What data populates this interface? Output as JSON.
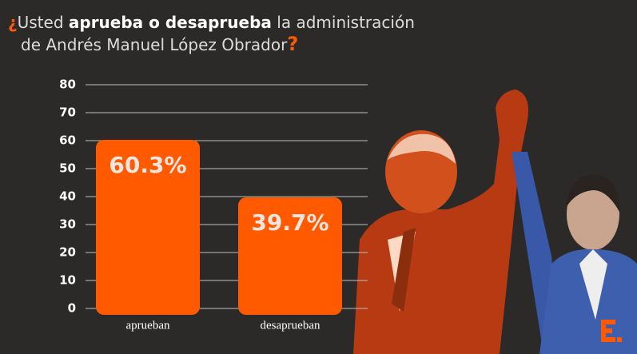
{
  "chart_data": {
    "type": "bar",
    "title": [
      "¿",
      "Usted ",
      "aprueba o desaprueba",
      " la administración",
      "de Andrés Manuel López Obrador",
      "?"
    ],
    "categories": [
      "aprueban",
      "desaprueban"
    ],
    "values": [
      60.3,
      39.7
    ],
    "value_labels": [
      "60.3%",
      "39.7%"
    ],
    "color": "#ff5a00",
    "ylim": [
      0,
      80
    ],
    "yticks": [
      0,
      10,
      20,
      30,
      40,
      50,
      60,
      70,
      80
    ],
    "grid": true
  }
}
